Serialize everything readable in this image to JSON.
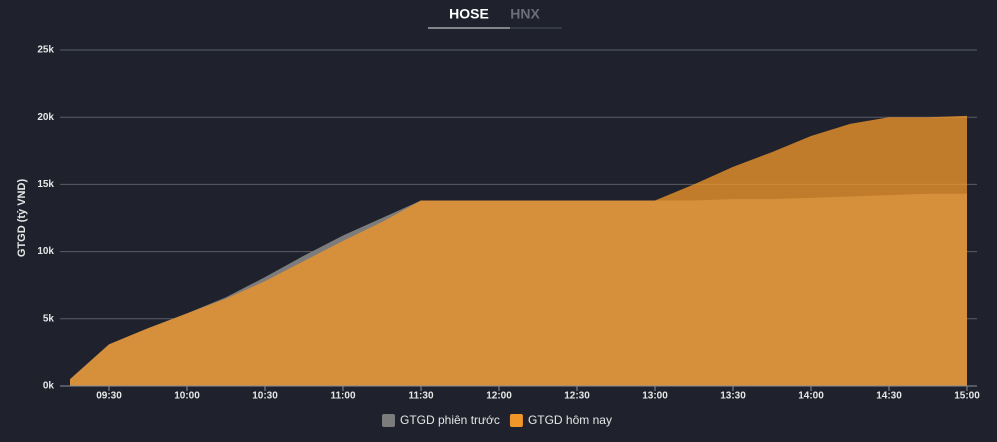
{
  "tabs": [
    "HOSE",
    "HNX"
  ],
  "chart_data": {
    "type": "area",
    "y_label": "GTGD (tỷ VND)",
    "x": [
      "09:15",
      "09:30",
      "09:45",
      "10:00",
      "10:15",
      "10:30",
      "10:45",
      "11:00",
      "11:15",
      "11:30",
      "11:45",
      "12:00",
      "12:15",
      "12:30",
      "12:45",
      "13:00",
      "13:15",
      "13:30",
      "13:45",
      "14:00",
      "14:15",
      "14:30",
      "14:45",
      "15:00"
    ],
    "xlim": [
      "09:15",
      "15:00"
    ],
    "xticks": [
      "09:30",
      "10:00",
      "10:30",
      "11:00",
      "11:30",
      "12:00",
      "12:30",
      "13:00",
      "13:30",
      "14:00",
      "14:30",
      "15:00"
    ],
    "ylim": [
      0,
      25000
    ],
    "yticks": [
      {
        "value": 0,
        "label": "0k"
      },
      {
        "value": 5000,
        "label": "5k"
      },
      {
        "value": 10000,
        "label": "10k"
      },
      {
        "value": 15000,
        "label": "15k"
      },
      {
        "value": 20000,
        "label": "20k"
      },
      {
        "value": 25000,
        "label": "25k"
      }
    ],
    "grid": true,
    "legend": "bottom",
    "series": [
      {
        "name": "GTGD phiên trước",
        "color": "#7c7c7c",
        "values": [
          500,
          3100,
          4300,
          5400,
          6600,
          8100,
          9700,
          11200,
          12500,
          13800,
          13800,
          13800,
          13800,
          13800,
          13800,
          13800,
          13800,
          13900,
          13900,
          14000,
          14100,
          14200,
          14300,
          14300
        ]
      },
      {
        "name": "GTGD hôm nay",
        "color": "#f0962a",
        "values": [
          500,
          3100,
          4300,
          5400,
          6500,
          7800,
          9300,
          10800,
          12200,
          13800,
          13800,
          13800,
          13800,
          13800,
          13800,
          13800,
          15000,
          16300,
          17400,
          18600,
          19500,
          20000,
          20000,
          20100
        ]
      }
    ]
  }
}
